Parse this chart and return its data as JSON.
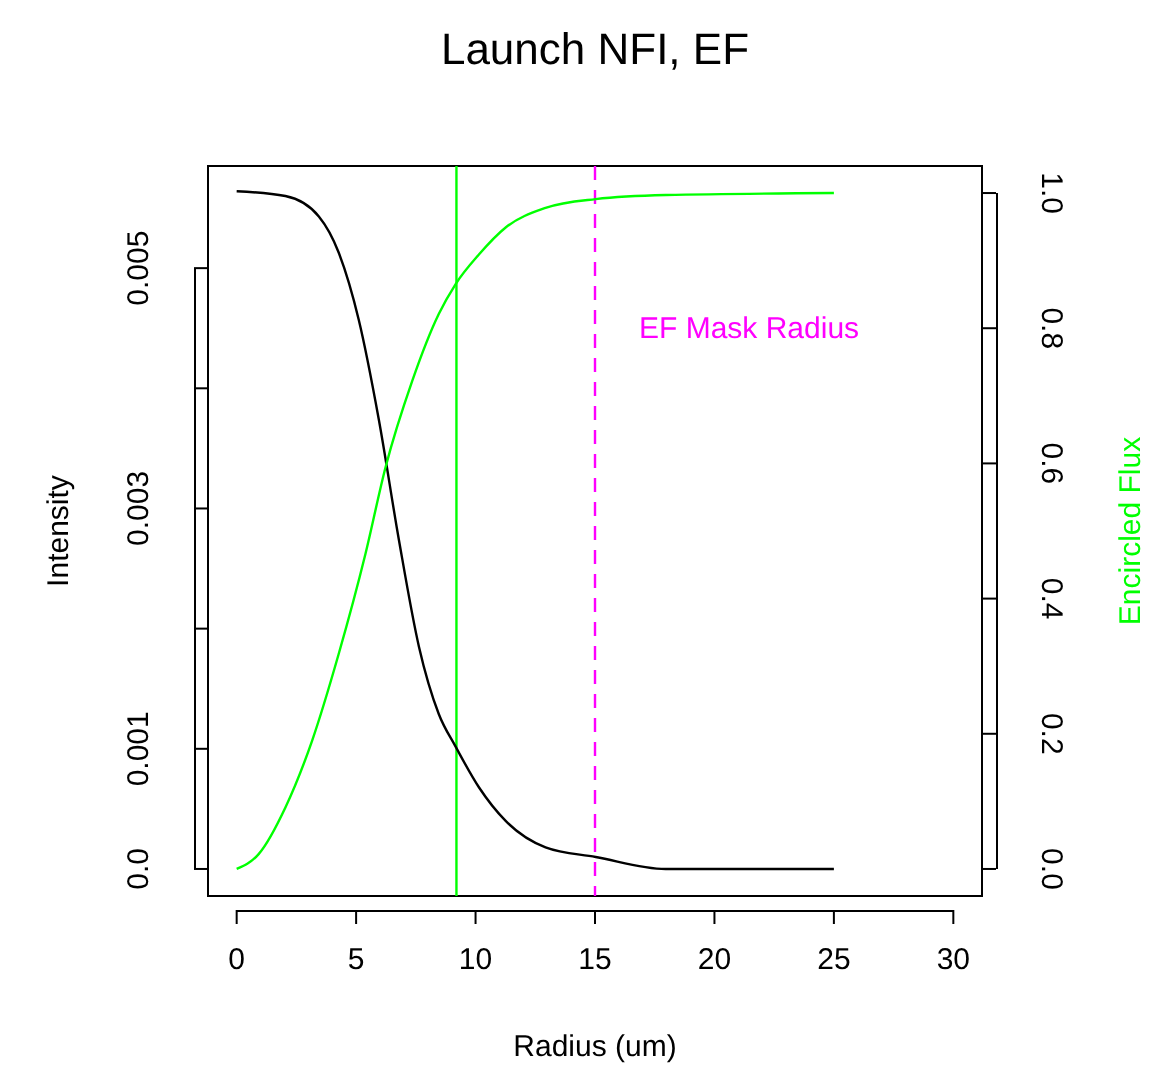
{
  "chart_data": {
    "type": "line",
    "title": "Launch NFI, EF",
    "xlabel": "Radius (um)",
    "ylabel": "Intensity",
    "y2label": "Encircled Flux",
    "series": [
      {
        "color": "#000000",
        "axis": "y",
        "x": [
          0,
          2.04,
          3.44,
          4.27,
          5.11,
          5.95,
          6.79,
          7.63,
          8.46,
          9.16,
          10.14,
          11.26,
          12.93,
          15.03,
          17.96,
          25
        ],
        "values": [
          0.00564,
          0.0056,
          0.00543,
          0.00513,
          0.00457,
          0.00374,
          0.00274,
          0.00185,
          0.00129,
          0.00102,
          0.00068,
          0.0004,
          0.00018,
          0.0001,
          0,
          0
        ]
      },
      {
        "color": "#00ff00",
        "axis": "y2",
        "x": [
          0,
          0.92,
          2.04,
          3.16,
          4.27,
          5.39,
          6.23,
          7.35,
          8.46,
          9.16,
          10.14,
          11.26,
          12.93,
          15.03,
          17.96,
          25
        ],
        "values": [
          0,
          0.022,
          0.091,
          0.19,
          0.318,
          0.466,
          0.594,
          0.722,
          0.821,
          0.865,
          0.909,
          0.949,
          0.978,
          0.991,
          0.997,
          1
        ]
      }
    ],
    "xlim": [
      -1.2,
      31.2
    ],
    "xticks": [
      0,
      5,
      10,
      15,
      20,
      25,
      30
    ],
    "ylim": [
      -0.000225,
      0.00585
    ],
    "yticks": [
      {
        "value": 0,
        "label": "0.0"
      },
      0.001,
      {
        "value": 0.002,
        "label": null
      },
      0.003,
      {
        "value": 0.004,
        "label": null
      },
      0.005
    ],
    "y2lim": [
      -0.04,
      1.04
    ],
    "y2ticks": [
      {
        "value": 0,
        "label": "0.0"
      },
      0.2,
      0.4,
      0.6,
      0.8,
      {
        "value": 1,
        "label": "1.0"
      }
    ],
    "ref_lines": [
      {
        "axis": "x",
        "value": 9.2,
        "color": "#00ff00",
        "line_style": "solid"
      },
      {
        "axis": "x",
        "value": 15,
        "color": "#ff00ff",
        "line_style": "dashed",
        "label": "EF Mask Radius"
      }
    ],
    "grid": false,
    "marker": "none",
    "line_style": "solid"
  }
}
